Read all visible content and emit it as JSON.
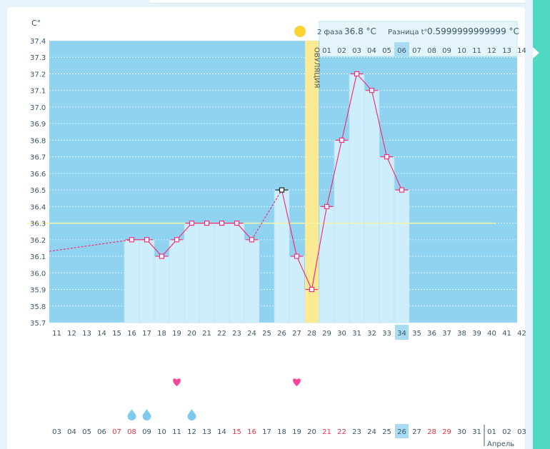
{
  "chart_data": {
    "type": "line",
    "y_unit_label": "C°",
    "y_ticks": [
      "37.4",
      "37.3",
      "37.2",
      "37.1",
      "37.0",
      "36.9",
      "36.8",
      "36.7",
      "36.6",
      "36.5",
      "36.4",
      "36.3",
      "36.2",
      "36.1",
      "36.0",
      "35.9",
      "35.8",
      "35.7"
    ],
    "ylim": [
      35.7,
      37.4
    ],
    "cycle_days": [
      "11",
      "12",
      "13",
      "14",
      "15",
      "16",
      "17",
      "18",
      "19",
      "20",
      "21",
      "22",
      "23",
      "24",
      "25",
      "26",
      "27",
      "28",
      "29",
      "30",
      "31",
      "32",
      "33",
      "34",
      "35",
      "36",
      "37",
      "38",
      "39",
      "40",
      "41",
      "42"
    ],
    "current_cycle_day": "34",
    "temperatures": [
      null,
      null,
      null,
      null,
      null,
      36.2,
      36.2,
      36.1,
      36.2,
      36.3,
      36.3,
      36.3,
      36.3,
      36.2,
      null,
      36.5,
      36.1,
      35.9,
      36.4,
      36.8,
      37.2,
      37.1,
      36.7,
      36.5,
      null,
      null,
      null,
      null,
      null,
      null,
      null,
      null
    ],
    "dashed_start_value": 36.13,
    "cover_line": 36.3,
    "ovulation_cycle_day": "28",
    "ovulation_label": "ОВУЛЯЦИЯ",
    "phase2_day_labels": [
      "01",
      "02",
      "03",
      "04",
      "05",
      "06",
      "07",
      "08",
      "09",
      "10",
      "11",
      "12",
      "13",
      "14"
    ],
    "phase2_current_day": "06",
    "calendar_dates": [
      "03",
      "04",
      "05",
      "06",
      "07",
      "08",
      "09",
      "10",
      "11",
      "12",
      "13",
      "14",
      "15",
      "16",
      "17",
      "18",
      "19",
      "20",
      "21",
      "22",
      "23",
      "24",
      "25",
      "26",
      "27",
      "28",
      "29",
      "30",
      "31",
      "01",
      "02",
      "03"
    ],
    "calendar_red_indices": [
      4,
      5,
      12,
      13,
      18,
      19,
      25,
      26
    ],
    "calendar_today": "26",
    "month_label": "Апрель",
    "month_start_index": 29,
    "heart_indices": [
      8,
      16
    ],
    "drop_indices": [
      5,
      6,
      9
    ],
    "colors": {
      "plot_bg": "#8fd3f1",
      "bar": "#cfeefb",
      "line": "#f0327a",
      "ovulation": "#faea94",
      "cover": "#f5f3a8",
      "heart": "#f2479a",
      "drop": "#7ec9ef",
      "red_date": "#e8324b"
    }
  },
  "phase_info": {
    "phase_label": "2 фаза",
    "phase_value": "36.8 °C",
    "diff_label": "Разница t°",
    "diff_value": "0.5999999999999 °C"
  }
}
